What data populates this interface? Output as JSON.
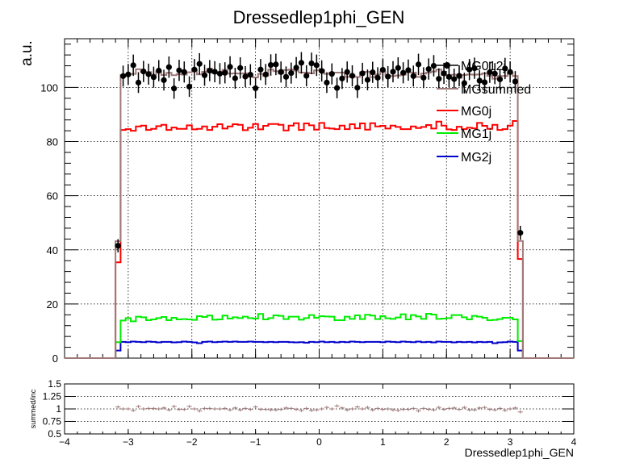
{
  "chart_data": [
    {
      "type": "line",
      "title": "Dressedlep1phi_GEN",
      "ylabel": "a.u.",
      "xlabel": "",
      "xlim": [
        -4,
        4
      ],
      "ylim": [
        0,
        118
      ],
      "x_ticks": [
        "−4",
        "−3",
        "−2",
        "−1",
        "0",
        "1",
        "2",
        "3",
        "4"
      ],
      "y_ticks": [
        "0",
        "20",
        "40",
        "60",
        "80",
        "100"
      ],
      "grid": true,
      "legend_position": "top-right",
      "bin_range": [
        -3.2,
        3.2
      ],
      "n_bins": 80,
      "series": [
        {
          "name": "MG012j",
          "style": "points-with-errors",
          "color": "#000000",
          "values": [
            41.5,
            104.2,
            104.8,
            108.2,
            101.8,
            105.9,
            104.9,
            103.8,
            106.2,
            102.7,
            107.5,
            99.6,
            106.3,
            105.7,
            100.3,
            106.6,
            108.7,
            104.5,
            106.2,
            105.8,
            105.1,
            105.4,
            107.6,
            103.4,
            107.2,
            104.0,
            104.7,
            99.7,
            106.6,
            104.8,
            108.3,
            108.5,
            105.7,
            103.9,
            105.3,
            107.3,
            109.1,
            104.3,
            108.9,
            108.2,
            106.1,
            101.8,
            105.0,
            99.8,
            103.3,
            105.7,
            104.3,
            99.9,
            105.2,
            102.8,
            105.6,
            103.6,
            106.5,
            104.0,
            105.8,
            107.2,
            105.4,
            106.4,
            104.2,
            108.5,
            103.6,
            106.8,
            108.0,
            103.2,
            105.2,
            103.9,
            103.1,
            104.3,
            101.6,
            106.6,
            107.1,
            102.5,
            101.9,
            105.6,
            105.1,
            103.0,
            107.0,
            105.7,
            102.2,
            46.3
          ]
        },
        {
          "name": "MGsummed",
          "style": "step",
          "color": "#a07a7a",
          "values": [
            43.2,
            104.6,
            104.8,
            105.0,
            106.7,
            105.7,
            105.7,
            104.7,
            106.0,
            104.6,
            105.4,
            104.5,
            104.9,
            104.7,
            105.6,
            106.3,
            104.8,
            105.8,
            106.9,
            105.3,
            105.1,
            106.5,
            105.1,
            105.2,
            105.1,
            105.2,
            104.0,
            103.7,
            105.0,
            104.2,
            106.6,
            106.0,
            105.1,
            106.4,
            106.6,
            106.2,
            105.5,
            105.5,
            105.2,
            106.3,
            106.4,
            105.0,
            105.5,
            105.5,
            105.5,
            103.9,
            104.4,
            103.9,
            105.6,
            105.8,
            103.8,
            104.8,
            105.9,
            104.4,
            104.2,
            104.4,
            104.7,
            105.6,
            105.5,
            103.9,
            105.1,
            105.5,
            105.9,
            106.6,
            104.6,
            104.5,
            104.7,
            103.5,
            104.6,
            104.8,
            104.7,
            104.8,
            105.2,
            104.3,
            103.2,
            104.2,
            104.2,
            105.4,
            104.2,
            43.3
          ]
        },
        {
          "name": "MG0j",
          "style": "step",
          "color": "#ff0000",
          "values": [
            35.4,
            84.3,
            84.6,
            84.0,
            85.6,
            85.9,
            84.3,
            84.7,
            85.7,
            86.2,
            84.3,
            85.2,
            84.7,
            84.7,
            86.0,
            84.5,
            84.7,
            85.6,
            84.3,
            85.5,
            86.4,
            84.8,
            85.6,
            86.4,
            86.2,
            84.2,
            85.1,
            86.5,
            84.5,
            85.8,
            86.5,
            86.5,
            86.2,
            84.1,
            85.9,
            86.8,
            84.3,
            86.7,
            86.0,
            84.4,
            86.9,
            85.0,
            84.8,
            84.6,
            85.9,
            84.6,
            86.4,
            84.9,
            86.7,
            84.4,
            86.8,
            85.6,
            85.8,
            84.8,
            85.9,
            85.4,
            84.6,
            84.6,
            85.6,
            85.0,
            85.4,
            86.1,
            84.8,
            87.4,
            85.9,
            84.5,
            84.3,
            85.5,
            84.6,
            85.1,
            84.9,
            86.9,
            85.8,
            84.7,
            86.2,
            84.3,
            84.6,
            85.9,
            87.6,
            36.6
          ]
        },
        {
          "name": "MG1j",
          "style": "step",
          "color": "#00ee00",
          "values": [
            5.9,
            13.9,
            14.8,
            13.6,
            15.3,
            15.1,
            14.0,
            14.3,
            14.8,
            15.2,
            14.0,
            14.9,
            14.3,
            14.4,
            14.3,
            14.1,
            15.5,
            15.2,
            15.7,
            14.2,
            14.3,
            15.7,
            14.6,
            15.1,
            14.8,
            15.3,
            14.8,
            14.6,
            16.3,
            14.3,
            14.8,
            15.8,
            15.6,
            14.4,
            15.3,
            15.3,
            14.2,
            14.8,
            15.9,
            14.9,
            15.5,
            15.4,
            15.3,
            14.0,
            14.0,
            15.3,
            14.5,
            15.8,
            14.4,
            16.0,
            15.7,
            14.4,
            15.5,
            14.7,
            14.5,
            15.0,
            16.2,
            14.3,
            15.9,
            15.4,
            14.5,
            16.4,
            16.1,
            14.5,
            14.6,
            14.8,
            15.9,
            15.9,
            15.1,
            14.3,
            15.6,
            15.3,
            14.9,
            14.0,
            14.1,
            14.4,
            14.9,
            14.9,
            14.3,
            6.3
          ]
        },
        {
          "name": "MG2j",
          "style": "step",
          "color": "#0000cc",
          "values": [
            2.8,
            6.0,
            5.9,
            6.1,
            6.0,
            5.9,
            6.1,
            6.0,
            5.8,
            6.0,
            6.0,
            5.8,
            5.9,
            6.1,
            6.0,
            5.8,
            5.5,
            6.0,
            6.1,
            5.9,
            6.0,
            6.1,
            6.0,
            6.1,
            6.0,
            6.0,
            6.1,
            6.0,
            6.0,
            5.9,
            6.0,
            5.9,
            6.0,
            6.0,
            5.9,
            5.8,
            5.9,
            5.7,
            6.0,
            5.9,
            6.1,
            5.9,
            6.0,
            5.8,
            6.0,
            5.9,
            6.1,
            6.0,
            5.9,
            6.0,
            6.0,
            6.0,
            5.9,
            6.1,
            6.0,
            5.9,
            6.1,
            6.0,
            5.9,
            6.1,
            5.9,
            6.0,
            5.8,
            6.1,
            6.0,
            6.0,
            5.8,
            6.0,
            5.9,
            6.0,
            5.8,
            6.0,
            5.9,
            6.0,
            5.5,
            5.8,
            5.9,
            6.1,
            6.0,
            2.8
          ]
        }
      ]
    },
    {
      "type": "scatter",
      "title": "",
      "xlabel": "Dressedlep1phi_GEN",
      "ylabel": "summed/inc",
      "xlim": [
        -4,
        4
      ],
      "ylim": [
        0.5,
        1.5
      ],
      "x_ticks": [
        "−4",
        "−3",
        "−2",
        "−1",
        "0",
        "1",
        "2",
        "3",
        "4"
      ],
      "y_ticks": [
        "0.5",
        "0.75",
        "1",
        "1.25",
        "1.5"
      ],
      "grid": true,
      "series": [
        {
          "name": "",
          "color": "#a07a7a",
          "values": [
            1.04,
            1.0,
            1.0,
            0.97,
            1.05,
            1.0,
            1.01,
            1.01,
            1.0,
            1.02,
            0.98,
            1.05,
            0.99,
            0.99,
            1.05,
            1.0,
            0.96,
            1.01,
            1.01,
            1.0,
            1.0,
            1.01,
            0.98,
            1.02,
            0.98,
            1.01,
            0.99,
            1.04,
            0.99,
            0.99,
            0.98,
            0.98,
            0.99,
            1.02,
            1.01,
            0.99,
            0.97,
            1.01,
            0.97,
            0.98,
            1.0,
            1.03,
            1.0,
            1.06,
            1.02,
            0.98,
            1.0,
            1.04,
            1.0,
            1.03,
            0.98,
            1.01,
            0.99,
            1.0,
            0.98,
            0.97,
            0.99,
            0.99,
            1.01,
            0.96,
            1.01,
            0.99,
            0.98,
            1.03,
            0.99,
            1.01,
            1.02,
            0.99,
            1.03,
            0.98,
            0.98,
            1.02,
            1.03,
            0.99,
            0.98,
            1.01,
            0.97,
            1.0,
            1.02,
            0.94
          ]
        }
      ]
    }
  ]
}
